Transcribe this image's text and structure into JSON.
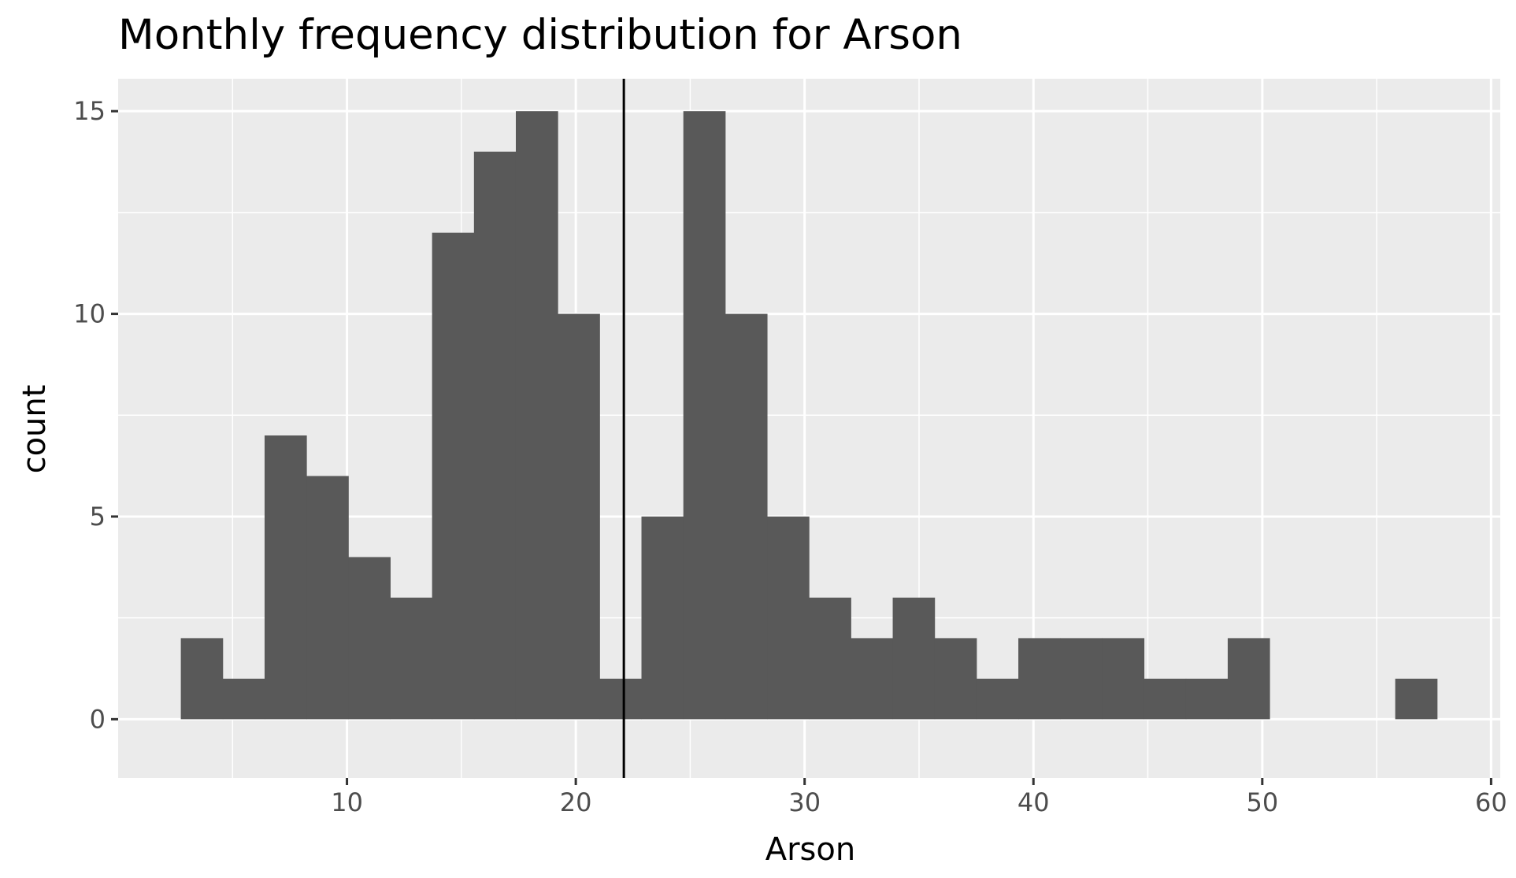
{
  "chart_data": {
    "type": "bar",
    "title": "Monthly frequency distribution for Arson",
    "xlabel": "Arson",
    "ylabel": "count",
    "xlim": [
      0,
      60.4
    ],
    "ylim": [
      -1.45,
      15.8
    ],
    "x_ticks": [
      10,
      20,
      30,
      40,
      50,
      60
    ],
    "y_ticks": [
      0,
      5,
      10,
      15
    ],
    "bin_width": 1.83,
    "bins": [
      {
        "x0": 2.74,
        "count": 2
      },
      {
        "x0": 4.57,
        "count": 1
      },
      {
        "x0": 6.4,
        "count": 7
      },
      {
        "x0": 8.23,
        "count": 6
      },
      {
        "x0": 10.06,
        "count": 4
      },
      {
        "x0": 11.89,
        "count": 3
      },
      {
        "x0": 13.72,
        "count": 12
      },
      {
        "x0": 15.55,
        "count": 14
      },
      {
        "x0": 17.38,
        "count": 15
      },
      {
        "x0": 19.21,
        "count": 10
      },
      {
        "x0": 21.04,
        "count": 1
      },
      {
        "x0": 22.87,
        "count": 5
      },
      {
        "x0": 24.7,
        "count": 15
      },
      {
        "x0": 26.53,
        "count": 10
      },
      {
        "x0": 28.36,
        "count": 5
      },
      {
        "x0": 30.19,
        "count": 3
      },
      {
        "x0": 32.02,
        "count": 2
      },
      {
        "x0": 33.85,
        "count": 3
      },
      {
        "x0": 35.68,
        "count": 2
      },
      {
        "x0": 37.51,
        "count": 1
      },
      {
        "x0": 39.34,
        "count": 2
      },
      {
        "x0": 41.17,
        "count": 2
      },
      {
        "x0": 43.0,
        "count": 2
      },
      {
        "x0": 44.83,
        "count": 1
      },
      {
        "x0": 46.66,
        "count": 1
      },
      {
        "x0": 48.49,
        "count": 2
      },
      {
        "x0": 50.32,
        "count": 0
      },
      {
        "x0": 52.15,
        "count": 0
      },
      {
        "x0": 53.98,
        "count": 0
      },
      {
        "x0": 55.81,
        "count": 1
      }
    ],
    "reference_line_x": 22.1,
    "grid": true,
    "colors": {
      "bar": "#595959",
      "panel": "#ebebeb",
      "grid_major": "#ffffff",
      "reference_line": "#000000"
    }
  }
}
